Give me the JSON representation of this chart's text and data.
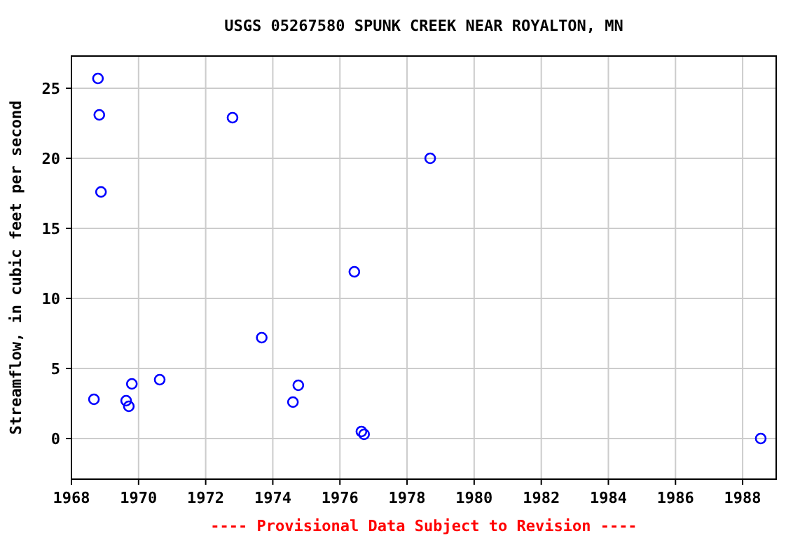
{
  "chart_data": {
    "type": "scatter",
    "title": "USGS 05267580 SPUNK CREEK NEAR ROYALTON, MN",
    "ylabel": "Streamflow, in cubic feet per second",
    "annotations": [
      "---- Provisional Data Subject to Revision ----"
    ],
    "x": [
      1968.67,
      1968.79,
      1968.83,
      1968.88,
      1969.63,
      1969.71,
      1969.8,
      1970.63,
      1972.8,
      1973.67,
      1974.6,
      1974.76,
      1976.43,
      1976.64,
      1976.72,
      1978.69,
      1988.54
    ],
    "series": [
      {
        "color": "#0000ff",
        "values": [
          2.8,
          25.7,
          23.1,
          17.6,
          2.7,
          2.3,
          3.9,
          4.2,
          22.9,
          7.2,
          2.6,
          3.8,
          11.9,
          0.5,
          0.3,
          20.0,
          0.0
        ]
      }
    ],
    "xlim": [
      1968,
      1989
    ],
    "xticks": [
      1968,
      1970,
      1972,
      1974,
      1976,
      1978,
      1980,
      1982,
      1984,
      1986,
      1988
    ],
    "ylim": [
      -2.9,
      27.3
    ],
    "yticks": [
      0,
      5,
      10,
      15,
      20,
      25
    ],
    "grid": true,
    "marker": "circle"
  }
}
